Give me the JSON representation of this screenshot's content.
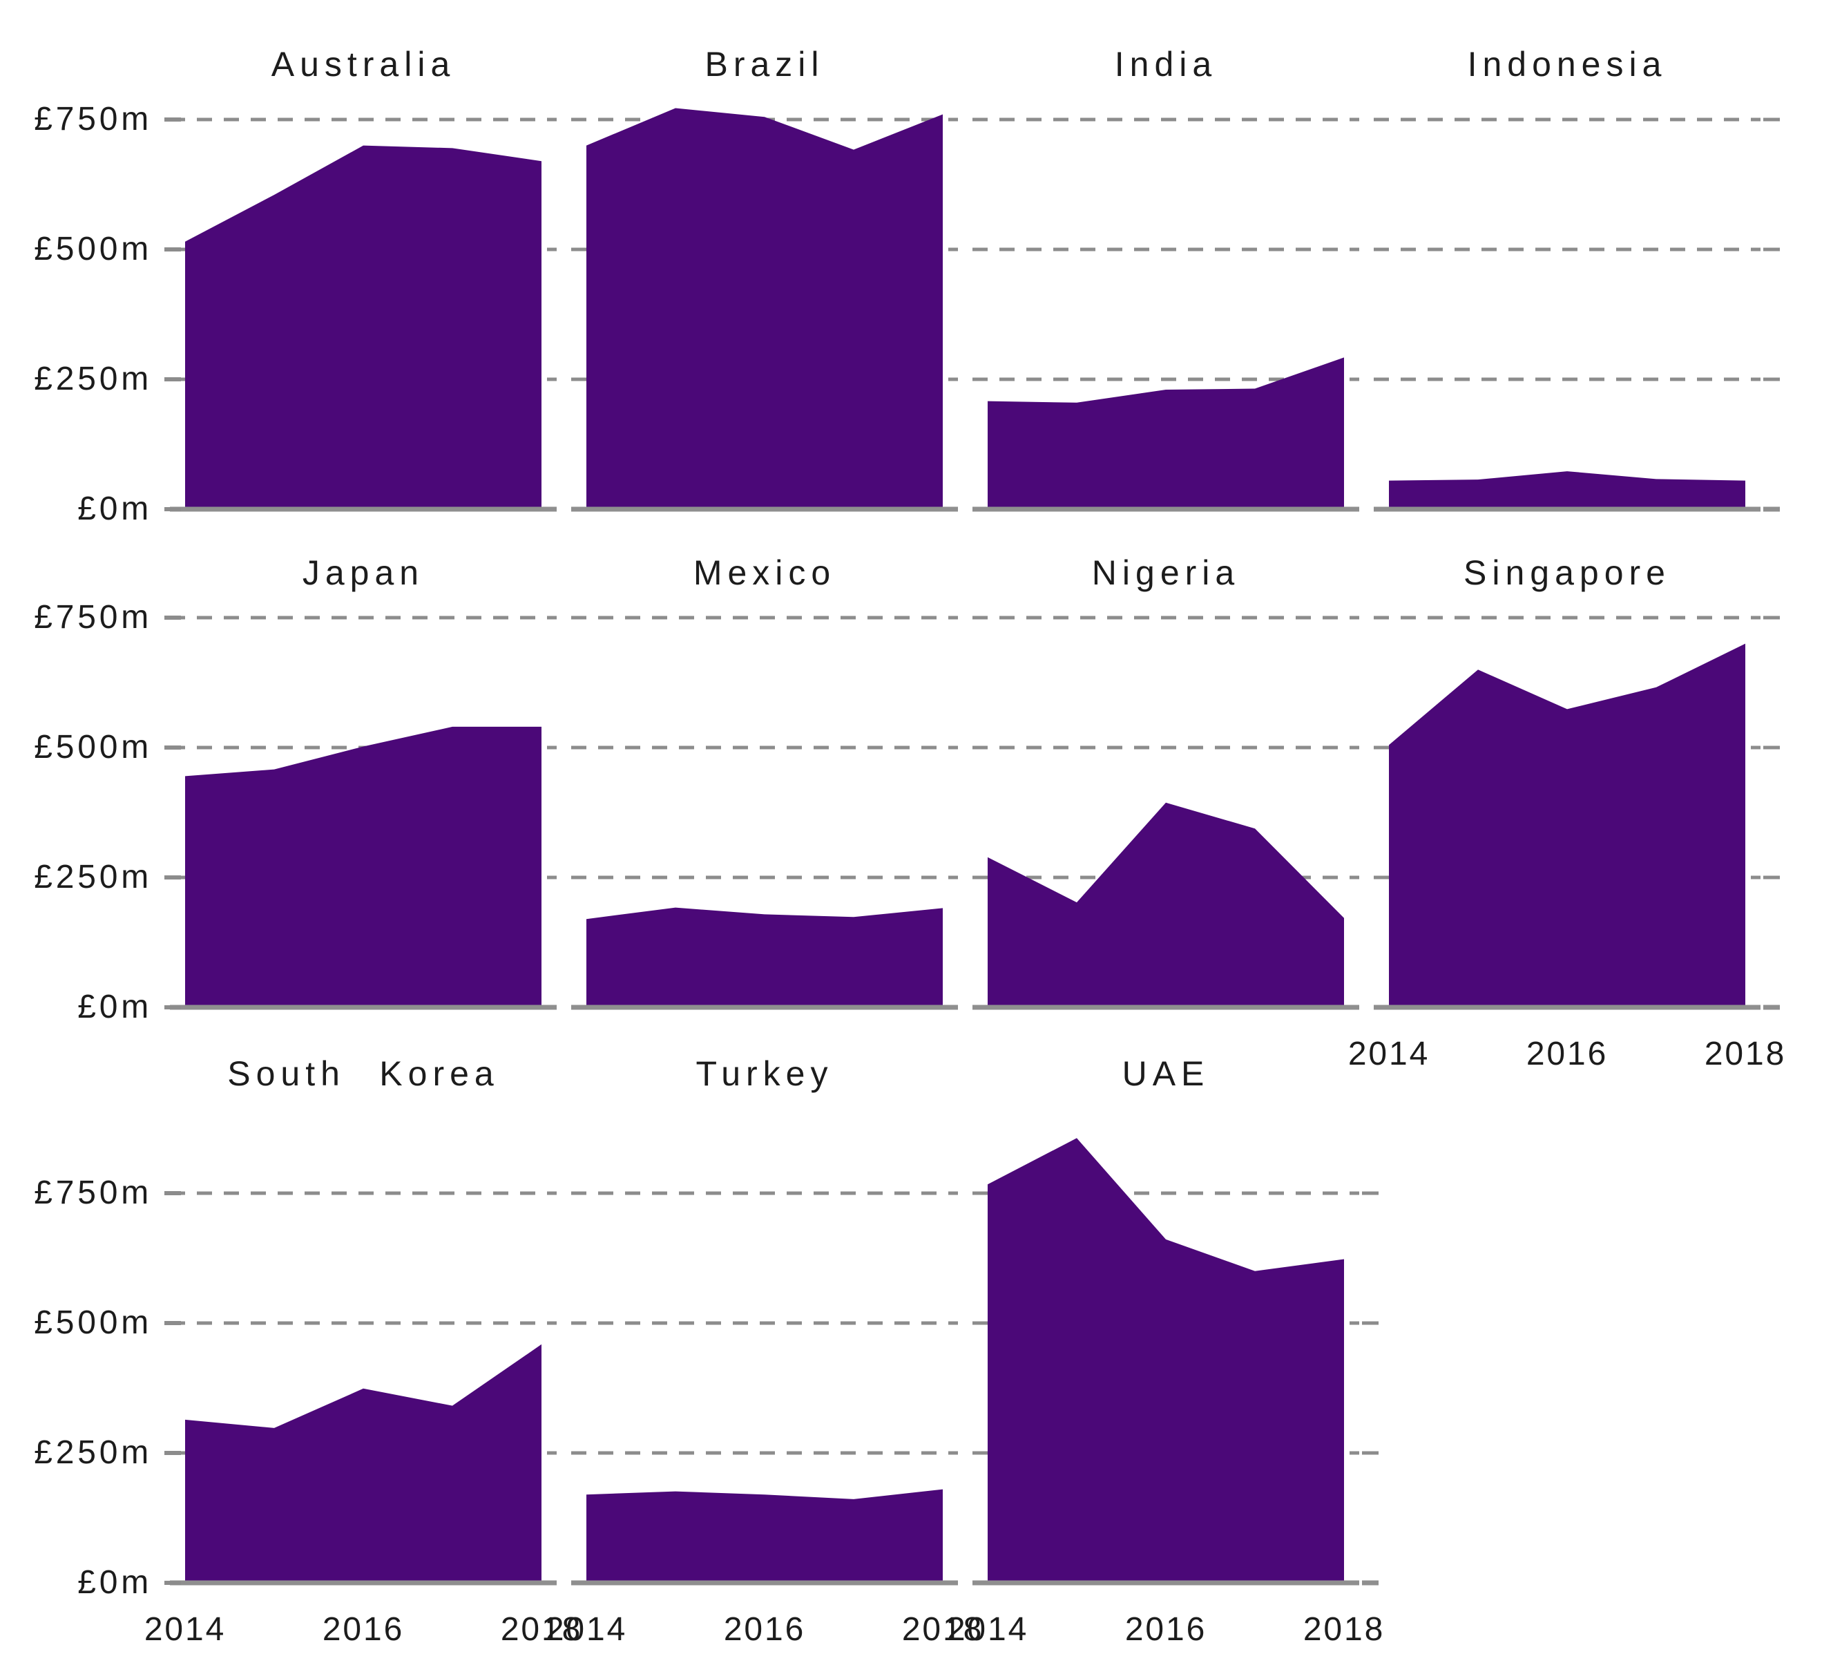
{
  "figure": {
    "kind": "small-multiples area chart grid",
    "background": "#ffffff"
  },
  "colors": {
    "area_fill": "#4B0878",
    "gridline": "#8C8C8C",
    "axis_line": "#8F8F8F",
    "text": "#1C1C1C"
  },
  "y_axis": {
    "unit": "£m",
    "tick_labels": [
      "£750m",
      "£500m",
      "£250m",
      "£0m"
    ],
    "tick_values": [
      750,
      500,
      250,
      0
    ]
  },
  "x_axis": {
    "tick_labels": [
      "2014",
      "2016",
      "2018"
    ],
    "tick_values": [
      2014,
      2016,
      2018
    ]
  },
  "chart_data": {
    "type": "area",
    "x": [
      2014,
      2015,
      2016,
      2017,
      2018
    ],
    "x_tick_labels": [
      "2014",
      "2016",
      "2018"
    ],
    "y_tick_labels": [
      "£750m",
      "£500m",
      "£250m",
      "£0m"
    ],
    "unit": "£m",
    "ylim": [
      0,
      900
    ],
    "gridline_values": [
      750,
      500,
      250
    ],
    "grid_style": "dashed horizontal gridlines, solid zero baseline",
    "legend": "none",
    "layout": {
      "columns": 4,
      "rows": 3,
      "order": "row-major"
    },
    "series": [
      {
        "name": "Australia",
        "values": [
          515,
          605,
          700,
          695,
          670
        ],
        "grid_row": 0,
        "grid_col": 0,
        "show_y_axis": true,
        "x_labels_below": false,
        "right_ticks": false
      },
      {
        "name": "Brazil",
        "values": [
          700,
          772,
          755,
          692,
          760
        ],
        "grid_row": 0,
        "grid_col": 1,
        "show_y_axis": false,
        "x_labels_below": false,
        "right_ticks": false
      },
      {
        "name": "India",
        "values": [
          208,
          205,
          230,
          232,
          292
        ],
        "grid_row": 0,
        "grid_col": 2,
        "show_y_axis": false,
        "x_labels_below": false,
        "right_ticks": false
      },
      {
        "name": "Indonesia",
        "values": [
          55,
          57,
          73,
          58,
          55
        ],
        "grid_row": 0,
        "grid_col": 3,
        "show_y_axis": false,
        "x_labels_below": false,
        "right_ticks": true
      },
      {
        "name": "Japan",
        "values": [
          445,
          458,
          502,
          540,
          540
        ],
        "grid_row": 1,
        "grid_col": 0,
        "show_y_axis": true,
        "x_labels_below": false,
        "right_ticks": false
      },
      {
        "name": "Mexico",
        "values": [
          170,
          192,
          179,
          174,
          191
        ],
        "grid_row": 1,
        "grid_col": 1,
        "show_y_axis": false,
        "x_labels_below": false,
        "right_ticks": false
      },
      {
        "name": "Nigeria",
        "values": [
          289,
          202,
          394,
          344,
          172
        ],
        "grid_row": 1,
        "grid_col": 2,
        "show_y_axis": false,
        "x_labels_below": false,
        "right_ticks": false
      },
      {
        "name": "Singapore",
        "values": [
          505,
          650,
          574,
          616,
          700
        ],
        "grid_row": 1,
        "grid_col": 3,
        "show_y_axis": false,
        "x_labels_below": true,
        "right_ticks": true
      },
      {
        "name": "South Korea",
        "values": [
          314,
          298,
          374,
          341,
          459
        ],
        "grid_row": 2,
        "grid_col": 0,
        "show_y_axis": true,
        "x_labels_below": true,
        "right_ticks": false
      },
      {
        "name": "Turkey",
        "values": [
          170,
          176,
          170,
          161,
          180
        ],
        "grid_row": 2,
        "grid_col": 1,
        "show_y_axis": false,
        "x_labels_below": true,
        "right_ticks": false
      },
      {
        "name": "UAE",
        "values": [
          767,
          856,
          661,
          600,
          623
        ],
        "grid_row": 2,
        "grid_col": 2,
        "show_y_axis": false,
        "x_labels_below": true,
        "right_ticks": true
      }
    ]
  }
}
